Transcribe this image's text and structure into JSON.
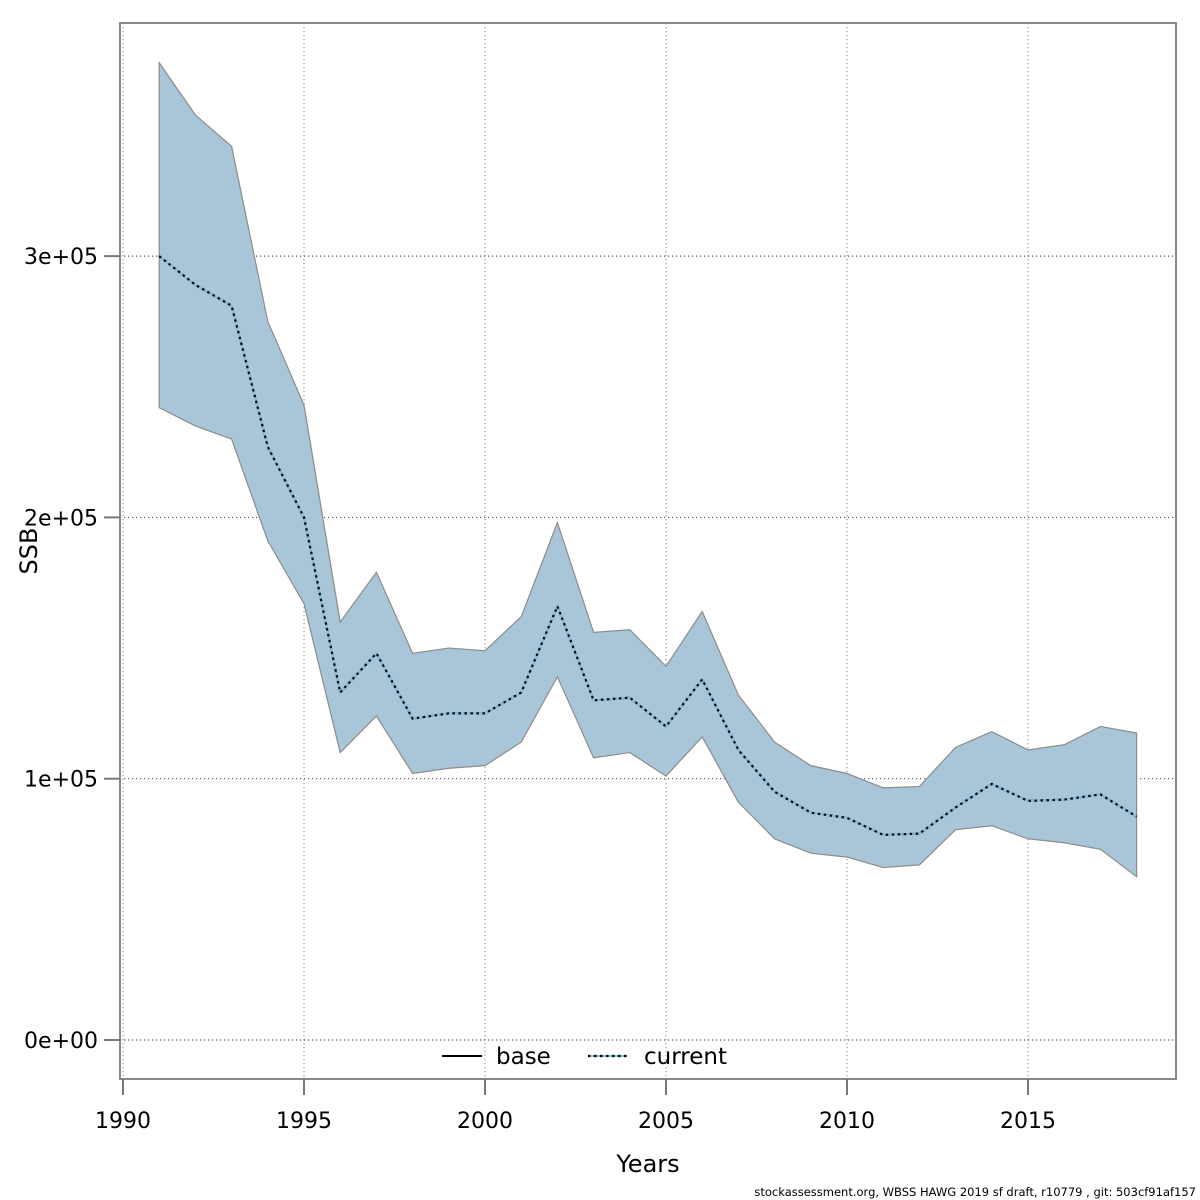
{
  "footer": {
    "text": "stockassessment.org, WBSS HAWG 2019 sf draft, r10779 , git: 503cf91af157"
  },
  "axes": {
    "x_label": "Years",
    "y_label": "SSB",
    "x_tick_labels": [
      "1990",
      "1995",
      "2000",
      "2005",
      "2010",
      "2015"
    ],
    "y_tick_labels": [
      "0e+00",
      "1e+05",
      "2e+05",
      "3e+05"
    ]
  },
  "legend": {
    "position": "bottom-center-inside",
    "items": [
      {
        "label": "base",
        "style": "solid",
        "color": "#000000"
      },
      {
        "label": "current",
        "style": "dotted",
        "color": "#86BEE0"
      }
    ]
  },
  "colors": {
    "ribbon": "#A8C6D8",
    "ribbon_edge": "#8C8C8C",
    "current_line_under": "#86BEE0",
    "current_line_dots": "#0a0a0a",
    "base_line": "#000000",
    "plot_border": "#888888",
    "grid": "#999999"
  },
  "chart_data": {
    "type": "line",
    "title": "",
    "xlabel": "Years",
    "ylabel": "SSB",
    "xlim": [
      1989.917,
      2019.088
    ],
    "ylim": [
      -14925,
      389220
    ],
    "grid": true,
    "x_tick_values": [
      1990,
      1995,
      2000,
      2005,
      2010,
      2015
    ],
    "y_tick_values": [
      0,
      100000,
      200000,
      300000
    ],
    "x": [
      1991,
      1992,
      1993,
      1994,
      1995,
      1996,
      1997,
      1998,
      1999,
      2000,
      2001,
      2002,
      2003,
      2004,
      2005,
      2006,
      2007,
      2008,
      2009,
      2010,
      2011,
      2012,
      2013,
      2014,
      2015,
      2016,
      2017,
      2018
    ],
    "series": [
      {
        "name": "current",
        "style": "dotted",
        "values": [
          300000,
          289000,
          281000,
          227000,
          200000,
          133000,
          148000,
          123000,
          125000,
          125000,
          133000,
          166000,
          130000,
          131000,
          120000,
          138000,
          111000,
          95000,
          87000,
          85000,
          78500,
          79000,
          89000,
          98000,
          91500,
          92000,
          94000,
          85500
        ]
      },
      {
        "name": "base",
        "style": "solid",
        "coincides_with_current": true,
        "values": [
          300000,
          289000,
          281000,
          227000,
          200000,
          133000,
          148000,
          123000,
          125000,
          125000,
          133000,
          166000,
          130000,
          131000,
          120000,
          138000,
          111000,
          95000,
          87000,
          85000,
          78500,
          79000,
          89000,
          98000,
          91500,
          92000,
          94000,
          85500
        ]
      }
    ],
    "band": {
      "name": "current confidence band",
      "lo": [
        242000,
        235000,
        230000,
        191000,
        167000,
        110000,
        124000,
        102000,
        104000,
        105000,
        114000,
        139000,
        108000,
        110000,
        101000,
        116000,
        91000,
        77000,
        71500,
        70000,
        66000,
        67000,
        80500,
        82000,
        77000,
        75500,
        73000,
        62500
      ],
      "hi": [
        374000,
        354000,
        342000,
        275000,
        243000,
        160000,
        179000,
        148000,
        150000,
        149000,
        162000,
        198000,
        156000,
        157000,
        143000,
        164000,
        132000,
        114000,
        105000,
        102000,
        96500,
        97000,
        112000,
        118000,
        111000,
        113000,
        120000,
        117500
      ]
    }
  }
}
